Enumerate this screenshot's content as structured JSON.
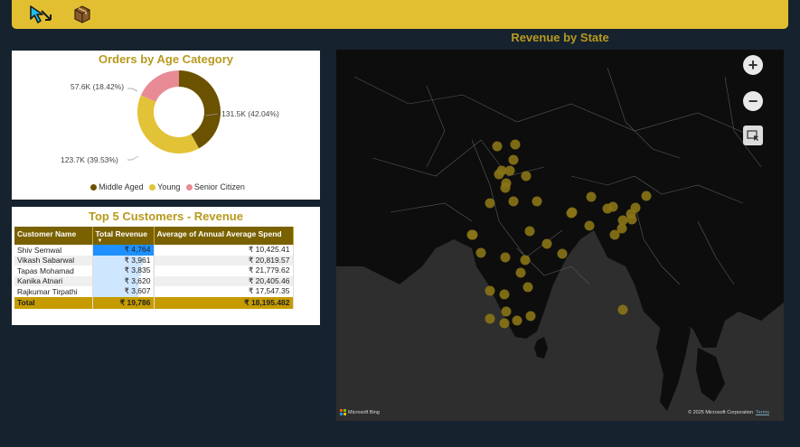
{
  "toolbar": {
    "icons": [
      "cursor-arrow-icon",
      "package-box-icon"
    ]
  },
  "map": {
    "title": "Revenue by State",
    "zoom_in": "+",
    "zoom_out": "−",
    "attribution": "Microsoft Bing",
    "copyright": "© 2025 Microsoft Corporation",
    "terms": "Terms",
    "marker_color": "#8a7416"
  },
  "donut": {
    "title": "Orders by Age Category",
    "labels": {
      "middle_aged": "131.5K (42.04%)",
      "young": "123.7K (39.53%)",
      "senior": "57.6K (18.42%)"
    },
    "legend": [
      "Middle Aged",
      "Young",
      "Senior Citizen"
    ]
  },
  "chart_data": {
    "type": "pie",
    "title": "Orders by Age Category",
    "categories": [
      "Middle Aged",
      "Young",
      "Senior Citizen"
    ],
    "values": [
      131.5,
      123.7,
      57.6
    ],
    "percentages": [
      42.04,
      39.53,
      18.42
    ],
    "unit": "K",
    "colors": [
      "#6b5200",
      "#e2c237",
      "#e88b94"
    ],
    "legend_placement": "bottom"
  },
  "table": {
    "title": "Top 5 Customers - Revenue",
    "headers": [
      "Customer Name",
      "Total Revenue",
      "Average of Annual Average Spend"
    ],
    "rows": [
      [
        "Shiv Semwal",
        "₹ 4,764",
        "₹ 10,425.41"
      ],
      [
        "Vikash Sabarwal",
        "₹ 3,961",
        "₹ 20,819.57"
      ],
      [
        "Tapas Mohamad",
        "₹ 3,835",
        "₹ 21,779.62"
      ],
      [
        "Kanika Atnari",
        "₹ 3,620",
        "₹ 20,405.46"
      ],
      [
        "Rajkumar Tirpathi",
        "₹ 3,607",
        "₹ 17,547.35"
      ]
    ],
    "total": [
      "Total",
      "₹ 19,786",
      "₹ 18,195.482"
    ],
    "revenue_fill": [
      1.0,
      0.83,
      0.8,
      0.76,
      0.76
    ]
  }
}
